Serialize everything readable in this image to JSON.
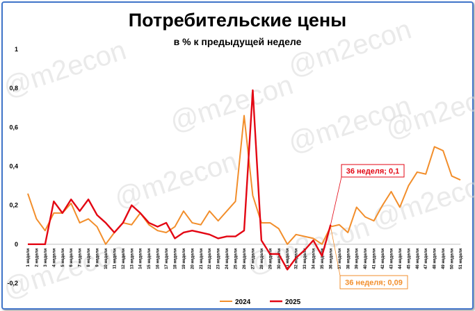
{
  "chart_data": {
    "type": "line",
    "title": "Потребительские цены",
    "subtitle": "в % к предыдущей неделе",
    "watermark": "@m2econ",
    "x_labels": [
      "1 недели",
      "2 недели",
      "3 недели",
      "4 недели",
      "5 недели",
      "6 недели",
      "7 недели",
      "8 недели",
      "9 недели",
      "10 недели",
      "11 недели",
      "12 недели",
      "13 недели",
      "14 недели",
      "15 недели",
      "16 недели",
      "17 недели",
      "18 недели",
      "19 недели",
      "20 недели",
      "21 недели",
      "22 недели",
      "23 недели",
      "24 недели",
      "25 недели",
      "26 недели",
      "27 недели",
      "28 недели",
      "29 недели",
      "30 недели",
      "31 недели",
      "32 недели",
      "33 недели",
      "34 недели",
      "35 недели",
      "36 недели",
      "37 недели",
      "38 недели",
      "39 недели",
      "40 недели",
      "41 недели",
      "42 недели",
      "43 недели",
      "44 недели",
      "45 недели",
      "46 недели",
      "47 недели",
      "48 недели",
      "49 недели",
      "50 недели",
      "51 недели"
    ],
    "x_tick_labels": [
      "1 недели",
      "2 недели",
      "3 недели",
      "4 недели",
      "5 недели",
      "6 недели",
      "7 недели",
      "8 недели",
      "9 недели",
      "10 недели",
      "11 недели",
      "12 недели",
      "13 недели",
      "14 недели",
      "15 недели",
      "16 недели",
      "17 недели",
      "18 недели",
      "19 недели",
      "20 недели",
      "21 недели",
      "22 недели",
      "23 недели",
      "24 недели",
      "25 недели",
      "26 недели",
      "27 недели",
      "28 недели",
      "29 недели",
      "30 недели",
      "31 недели",
      "32 недели",
      "33 недели",
      "34 недели",
      "35 недели",
      "36 недели",
      "37 недели",
      "38 недели",
      "39 недели",
      "40 недели",
      "41 недели",
      "42 недели",
      "43 недели",
      "44 недели",
      "45 недели",
      "46 недели",
      "47 недели",
      "48 недели",
      "49 недели",
      "50 недели",
      "51 недели"
    ],
    "ylim": [
      -0.2,
      1.0
    ],
    "y_ticks": [
      -0.2,
      0,
      0.2,
      0.4,
      0.6,
      0.8,
      1
    ],
    "y_tick_labels": [
      "-0,2",
      "0",
      "0,2",
      "0,4",
      "0,6",
      "0,8",
      "1"
    ],
    "grid": false,
    "legend_position": "bottom",
    "series": [
      {
        "name": "2024",
        "color": "#f28e2b",
        "values": [
          0.26,
          0.13,
          0.07,
          0.16,
          0.16,
          0.21,
          0.11,
          0.13,
          0.09,
          0.0,
          0.06,
          0.11,
          0.1,
          0.16,
          0.1,
          0.07,
          0.06,
          0.09,
          0.17,
          0.11,
          0.1,
          0.17,
          0.12,
          0.17,
          0.22,
          0.66,
          0.25,
          0.11,
          0.11,
          0.08,
          0.0,
          0.05,
          0.04,
          0.03,
          0.0,
          0.09,
          0.1,
          0.06,
          0.19,
          0.14,
          0.12,
          0.2,
          0.27,
          0.19,
          0.3,
          0.37,
          0.36,
          0.5,
          0.48,
          0.35,
          0.33
        ]
      },
      {
        "name": "2025",
        "color": "#e30613",
        "values": [
          0.0,
          0.0,
          0.0,
          0.22,
          0.16,
          0.23,
          0.17,
          0.23,
          0.15,
          0.11,
          0.06,
          0.11,
          0.2,
          0.16,
          0.11,
          0.09,
          0.11,
          0.03,
          0.06,
          0.07,
          0.06,
          0.05,
          0.03,
          0.04,
          0.04,
          0.07,
          0.79,
          0.02,
          -0.05,
          -0.05,
          -0.13,
          -0.07,
          -0.03,
          0.02,
          -0.06,
          0.1
        ]
      }
    ],
    "annotations": [
      {
        "text": "36 неделя; 0,1",
        "series": "2025",
        "x_index": 35,
        "value": 0.1,
        "color": "#e30613"
      },
      {
        "text": "36 неделя; 0,09",
        "series": "2024",
        "x_index": 35,
        "value": 0.09,
        "color": "#f28e2b"
      }
    ]
  }
}
